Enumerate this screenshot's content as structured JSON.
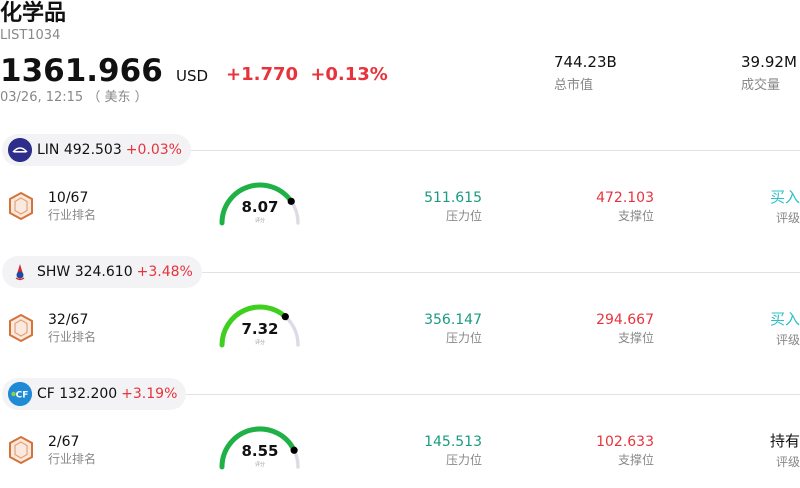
{
  "header": {
    "title": "化学品",
    "code": "LIST1034",
    "price": "1361.966",
    "currency": "USD",
    "change": "+1.770",
    "change_pct": "+0.13%",
    "time": "03/26, 12:15 （ 美东 ）",
    "market_cap_value": "744.23B",
    "market_cap_label": "总市值",
    "volume_value": "39.92M",
    "volume_label": "成交量"
  },
  "labels": {
    "rank": "行业排名",
    "resistance": "压力位",
    "support": "支撑位",
    "rating": "评级",
    "score": "评分"
  },
  "stocks": [
    {
      "ticker_price": "LIN 492.503",
      "change_pct": "+0.03%",
      "rank": "10/67",
      "score": "8.07",
      "resistance": "511.615",
      "support": "472.103",
      "rating": "买入",
      "rating_color": "#2cc0c8",
      "gauge_color": "#1fb146",
      "logo_icon": "linde-logo-icon"
    },
    {
      "ticker_price": "SHW 324.610",
      "change_pct": "+3.48%",
      "rank": "32/67",
      "score": "7.32",
      "resistance": "356.147",
      "support": "294.667",
      "rating": "买入",
      "rating_color": "#2cc0c8",
      "gauge_color": "#3fcf1e",
      "logo_icon": "sherwin-williams-logo-icon"
    },
    {
      "ticker_price": "CF 132.200",
      "change_pct": "+3.19%",
      "rank": "2/67",
      "score": "8.55",
      "resistance": "145.513",
      "support": "102.633",
      "rating": "持有",
      "rating_color": "#111111",
      "gauge_color": "#1fb146",
      "logo_icon": "cf-industries-logo-icon"
    }
  ]
}
